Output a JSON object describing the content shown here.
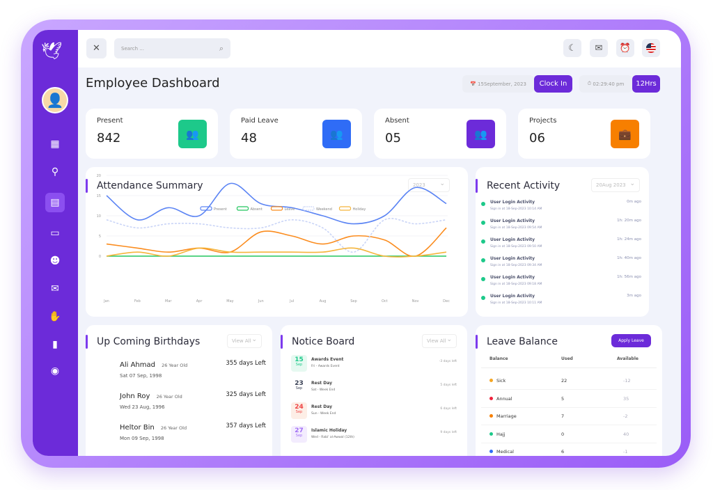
{
  "topbar": {
    "search_placeholder": "Search ...",
    "icons": [
      "close-icon",
      "search-icon",
      "moon-icon",
      "mail-icon",
      "bell-icon",
      "us-flag-icon"
    ]
  },
  "header": {
    "title": "Employee Dashboard",
    "date": "15September, 2023",
    "clock_in": "Clock In",
    "time": "02:29:40 pm",
    "hours": "12Hrs"
  },
  "stats": [
    {
      "label": "Present",
      "value": "842",
      "color": "#1dc98a"
    },
    {
      "label": "Paid Leave",
      "value": "48",
      "color": "#2f6cf6"
    },
    {
      "label": "Absent",
      "value": "05",
      "color": "#6c2bd9"
    },
    {
      "label": "Projects",
      "value": "06",
      "color": "#f77f00"
    }
  ],
  "attendance": {
    "title": "Attendance Summary",
    "year": "2023"
  },
  "chart_data": {
    "type": "line",
    "categories": [
      "Jan",
      "Feb",
      "Mar",
      "Apr",
      "May",
      "Jun",
      "Jul",
      "Aug",
      "Sep",
      "Oct",
      "Nov",
      "Dec"
    ],
    "ylim": [
      0,
      20
    ],
    "yticks": [
      0,
      5,
      10,
      15,
      20
    ],
    "legend": "top",
    "series": [
      {
        "name": "Present",
        "color": "#5b84f4",
        "values": [
          15,
          9,
          12,
          10,
          18,
          13,
          12,
          10,
          8,
          10,
          17,
          13
        ]
      },
      {
        "name": "Absent",
        "color": "#22c55e",
        "values": [
          0,
          0,
          0,
          0,
          0,
          0,
          0,
          0,
          0,
          0,
          0,
          0
        ]
      },
      {
        "name": "Leave",
        "color": "#fb8c1e",
        "values": [
          3,
          2,
          1,
          2,
          1,
          6,
          5,
          3,
          5,
          4,
          0,
          7
        ]
      },
      {
        "name": "Weekend",
        "color": "#c9d4f7",
        "dashed": true,
        "values": [
          9,
          7,
          8,
          8,
          7,
          7,
          9,
          7,
          1,
          9,
          8,
          9
        ]
      },
      {
        "name": "Holiday",
        "color": "#f5b53b",
        "values": [
          0,
          1,
          0,
          2,
          1,
          1,
          1,
          1,
          2,
          0,
          0,
          1
        ]
      }
    ]
  },
  "activity": {
    "title": "Recent Activity",
    "date": "20Aug 2023",
    "items": [
      {
        "title": "User Login Activity",
        "sub": "Sign in at 18-Sep-2023 10:14 AM",
        "ago": "0m ago"
      },
      {
        "title": "User Login Activity",
        "sub": "Sign in at 18-Sep-2023 09:54 AM",
        "ago": "1h: 20m ago"
      },
      {
        "title": "User Login Activity",
        "sub": "Sign in at 18-Sep-2023 09:50 AM",
        "ago": "1h: 24m ago"
      },
      {
        "title": "User Login Activity",
        "sub": "Sign in at 18-Sep-2023 09:34 AM",
        "ago": "1h: 40m ago"
      },
      {
        "title": "User Login Activity",
        "sub": "Sign in at 18-Sep-2023 09:18 AM",
        "ago": "1h: 56m ago"
      },
      {
        "title": "User Login Activity",
        "sub": "Sign in at 18-Sep-2023 10:11 AM",
        "ago": "3m ago"
      }
    ]
  },
  "birthdays": {
    "title": "Up Coming Birthdays",
    "view_all": "View All",
    "items": [
      {
        "name": "Ali Ahmad",
        "age": "26 Year Old",
        "date": "Sat 07 Sep, 1998",
        "left": "355 days Left"
      },
      {
        "name": "John Roy",
        "age": "26 Year Old",
        "date": "Wed 23 Aug, 1996",
        "left": "325 days Left"
      },
      {
        "name": "Heltor Bin",
        "age": "26 Year Old",
        "date": "Mon 09 Sep, 1998",
        "left": "357 days Left"
      }
    ]
  },
  "notice": {
    "title": "Notice Board",
    "view_all": "View All",
    "items": [
      {
        "day": "15",
        "mon": "Sep",
        "title": "Awards Event",
        "sub": "Fri - Awards Event",
        "left": "-3 days left",
        "color": "#1dc98a",
        "bg": "#e6f9f1"
      },
      {
        "day": "23",
        "mon": "Sep",
        "title": "Rest Day",
        "sub": "Sat - Week End",
        "left": "5 days left",
        "color": "#3b4256",
        "bg": "#fff"
      },
      {
        "day": "24",
        "mon": "Sep",
        "title": "Rest Day",
        "sub": "Sun - Week End",
        "left": "6 days left",
        "color": "#ef4444",
        "bg": "#fdeee6"
      },
      {
        "day": "27",
        "mon": "Sep",
        "title": "Islamic Holiday",
        "sub": "Wed - Rabi' al-Awwal (12th)",
        "left": "9 days left",
        "color": "#a26ef5",
        "bg": "#f3ecfe"
      }
    ]
  },
  "leave": {
    "title": "Leave Balance",
    "apply": "Apply Leave",
    "headers": [
      "Balance",
      "Used",
      "Available"
    ],
    "rows": [
      {
        "type": "Sick",
        "used": "22",
        "available": "-12",
        "color": "#f5a623"
      },
      {
        "type": "Annual",
        "used": "5",
        "available": "35",
        "color": "#ef233c"
      },
      {
        "type": "Marriage",
        "used": "7",
        "available": "-2",
        "color": "#f77f00"
      },
      {
        "type": "Hajj",
        "used": "0",
        "available": "40",
        "color": "#1dc98a"
      },
      {
        "type": "Medical",
        "used": "6",
        "available": "-1",
        "color": "#2f6cf6"
      }
    ]
  }
}
